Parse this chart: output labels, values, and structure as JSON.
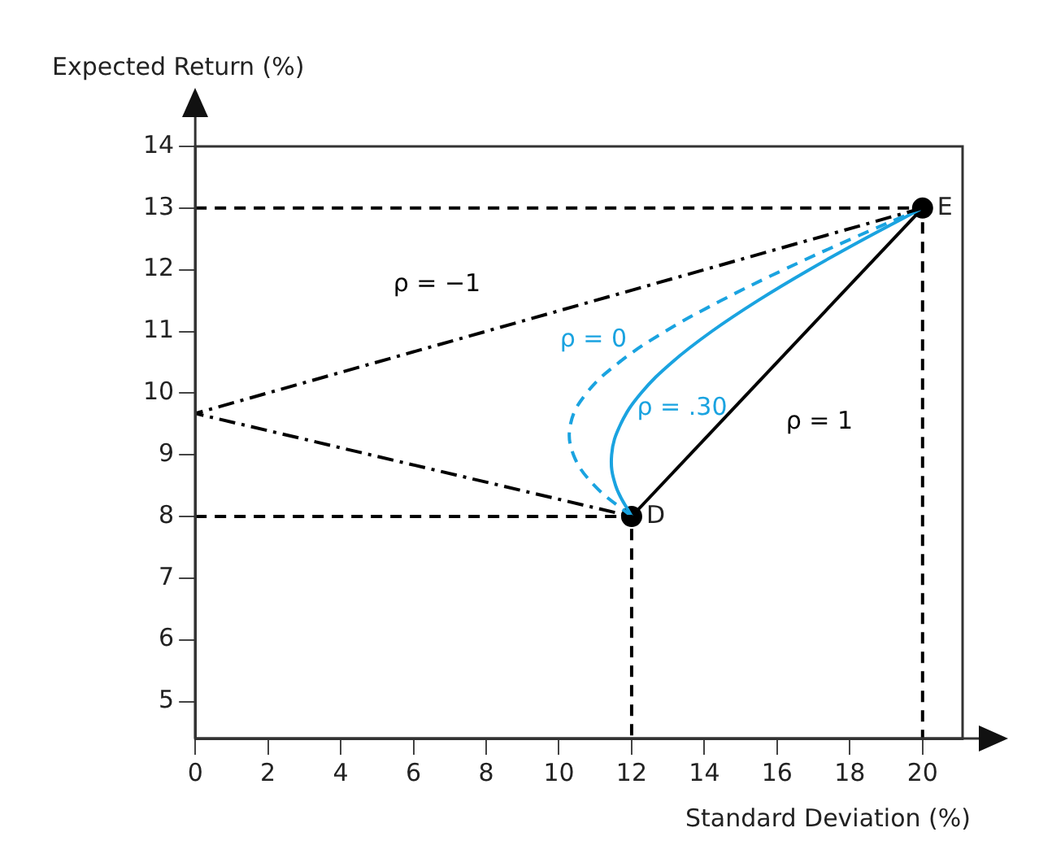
{
  "chart_data": {
    "type": "line",
    "xlabel": "Standard Deviation (%)",
    "ylabel": "Expected Return (%)",
    "xlim": [
      0,
      21.1
    ],
    "ylim": [
      4.4,
      14
    ],
    "xticks": [
      0,
      2,
      4,
      6,
      8,
      10,
      12,
      14,
      16,
      18,
      20
    ],
    "yticks": [
      5,
      6,
      7,
      8,
      9,
      10,
      11,
      12,
      13,
      14
    ],
    "grid": false,
    "legend": false,
    "series": [
      {
        "type": "line",
        "color": "#000000",
        "line_style": "dashed",
        "marker": "none",
        "x": [
          0,
          20,
          20
        ],
        "values": [
          13,
          13,
          4.4
        ]
      },
      {
        "type": "line",
        "color": "#000000",
        "line_style": "dashed",
        "marker": "none",
        "x": [
          0,
          12,
          12
        ],
        "values": [
          8,
          8,
          4.4
        ]
      },
      {
        "type": "line",
        "name": "ρ = −1",
        "color": "#000000",
        "line_style": "dashdot",
        "marker": "none",
        "x": [
          20,
          0,
          12
        ],
        "values": [
          13,
          9.67,
          8
        ]
      },
      {
        "type": "line",
        "name": "ρ = 0",
        "color": "#1aa3e0",
        "line_style": "dashed",
        "marker": "none",
        "x": [
          12,
          10.98,
          10.4,
          10.32,
          10.76,
          11.66,
          12.92,
          14.46,
          16.18,
          18.04,
          20
        ],
        "values": [
          8,
          8.5,
          9,
          9.5,
          10,
          10.5,
          11,
          11.5,
          12,
          12.5,
          13
        ]
      },
      {
        "type": "line",
        "name": "ρ = .30",
        "color": "#1aa3e0",
        "line_style": "solid",
        "marker": "none",
        "x": [
          12,
          11.56,
          11.45,
          11.7,
          12.26,
          13.11,
          14.2,
          15.47,
          16.88,
          18.4,
          20
        ],
        "values": [
          8,
          8.5,
          9,
          9.5,
          10,
          10.5,
          11,
          11.5,
          12,
          12.5,
          13
        ]
      },
      {
        "type": "line",
        "name": "ρ = 1",
        "color": "#000000",
        "line_style": "solid",
        "marker": "none",
        "x": [
          12,
          20
        ],
        "values": [
          8,
          13
        ]
      },
      {
        "type": "scatter",
        "color": "#000000",
        "marker": "circle",
        "x": [
          12,
          20
        ],
        "values": [
          8,
          13
        ]
      }
    ],
    "annotations": [
      {
        "text": "D",
        "x": 12,
        "y": 8
      },
      {
        "text": "E",
        "x": 20,
        "y": 13
      }
    ]
  }
}
